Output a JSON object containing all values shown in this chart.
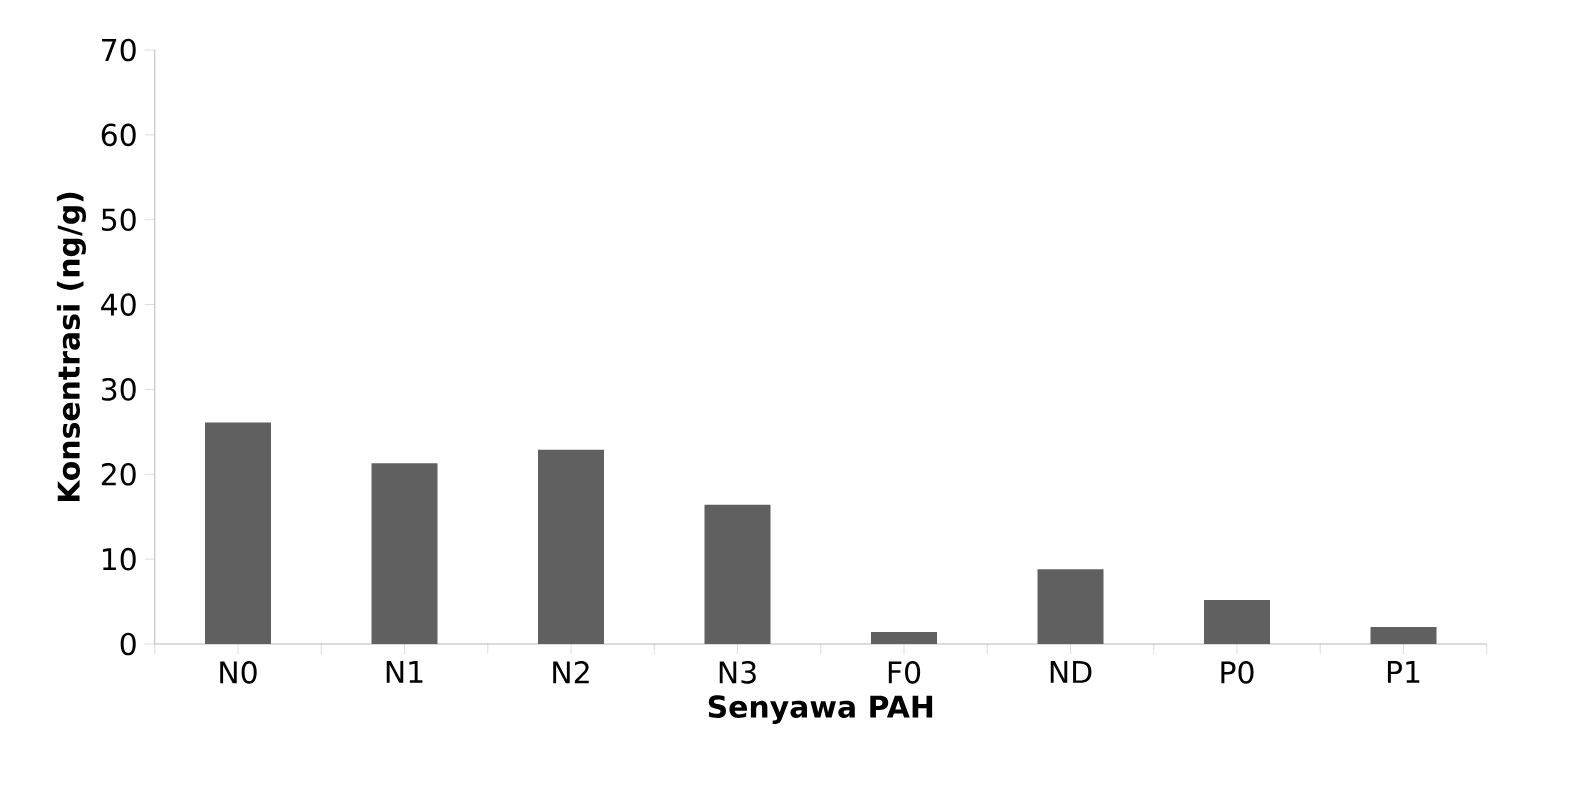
{
  "chart_data": {
    "type": "bar",
    "xlabel": "Senyawa PAH",
    "ylabel": "Konsentrasi (ng/g)",
    "categories": [
      "N0",
      "N1",
      "N2",
      "N3",
      "F0",
      "ND",
      "P0",
      "P1"
    ],
    "values": [
      26.1,
      21.3,
      22.9,
      16.4,
      1.4,
      8.8,
      5.2,
      2.0
    ],
    "color": "#606060",
    "ylim": [
      0,
      70
    ],
    "yticks": [
      0,
      10,
      20,
      30,
      40,
      50,
      60,
      70
    ],
    "grid": false
  }
}
